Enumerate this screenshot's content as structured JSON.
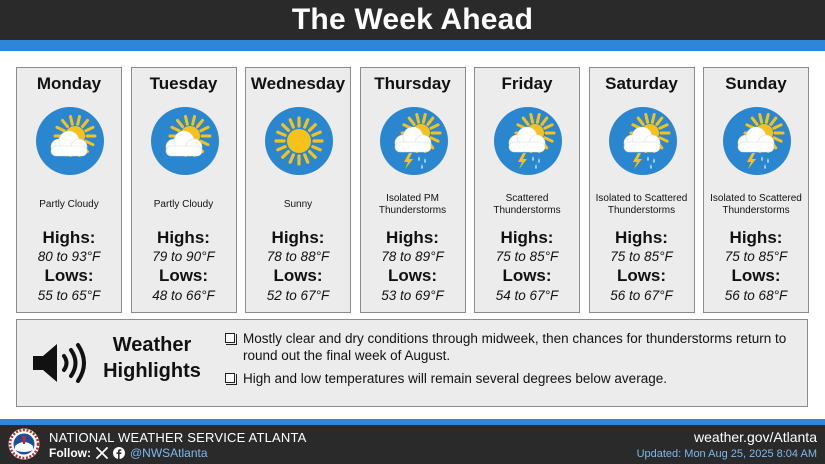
{
  "header": {
    "title": "The Week Ahead"
  },
  "days": [
    {
      "name": "Monday",
      "icon": "partly-cloudy-icon",
      "condition": "Partly Cloudy",
      "highs_label": "Highs:",
      "highs": "80 to 93°F",
      "lows_label": "Lows:",
      "lows": "55 to 65°F"
    },
    {
      "name": "Tuesday",
      "icon": "partly-cloudy-icon",
      "condition": "Partly Cloudy",
      "highs_label": "Highs:",
      "highs": "79 to 90°F",
      "lows_label": "Lows:",
      "lows": "48 to 66°F"
    },
    {
      "name": "Wednesday",
      "icon": "sunny-icon",
      "condition": "Sunny",
      "highs_label": "Highs:",
      "highs": "78 to 88°F",
      "lows_label": "Lows:",
      "lows": "52 to 67°F"
    },
    {
      "name": "Thursday",
      "icon": "thunderstorm-icon",
      "condition": "Isolated PM Thunderstorms",
      "highs_label": "Highs:",
      "highs": "78 to 89°F",
      "lows_label": "Lows:",
      "lows": "53 to 69°F"
    },
    {
      "name": "Friday",
      "icon": "thunderstorm-icon",
      "condition": "Scattered Thunderstorms",
      "highs_label": "Highs:",
      "highs": "75 to 85°F",
      "lows_label": "Lows:",
      "lows": "54 to 67°F"
    },
    {
      "name": "Saturday",
      "icon": "thunderstorm-icon",
      "condition": "Isolated to Scattered Thunderstorms",
      "highs_label": "Highs:",
      "highs": "75 to 85°F",
      "lows_label": "Lows:",
      "lows": "56 to 67°F"
    },
    {
      "name": "Sunday",
      "icon": "thunderstorm-icon",
      "condition": "Isolated to Scattered Thunderstorms",
      "highs_label": "Highs:",
      "highs": "75 to 85°F",
      "lows_label": "Lows:",
      "lows": "56 to 68°F"
    }
  ],
  "highlights": {
    "title": "Weather Highlights",
    "icon": "speaker-icon",
    "bullets": [
      "Mostly clear and dry conditions through midweek, then chances for thunderstorms return to round out the final week of August.",
      "High and low temperatures will remain several degrees below average."
    ]
  },
  "footer": {
    "org": "NATIONAL WEATHER SERVICE ATLANTA",
    "follow_label": "Follow:",
    "handle": "@NWSAtlanta",
    "site": "weather.gov/Atlanta",
    "updated": "Updated: Mon Aug 25, 2025 8:04 AM"
  },
  "colors": {
    "header_bg": "#2a2a2a",
    "accent_blue": "#2e86d8",
    "card_bg": "#ececec",
    "icon_circle": "#2b86d0",
    "sun": "#f6c21a"
  }
}
